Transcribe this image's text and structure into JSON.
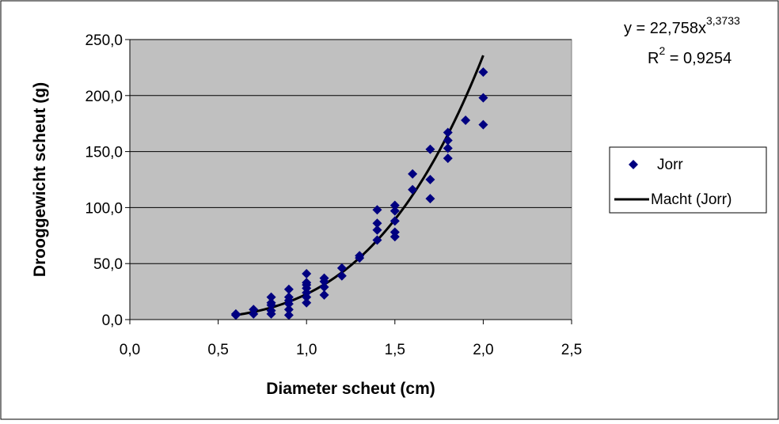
{
  "chart_data": {
    "type": "scatter",
    "xlabel": "Diameter scheut (cm)",
    "ylabel": "Drooggewicht scheut (g)",
    "xlim": [
      0.0,
      2.5
    ],
    "ylim": [
      0.0,
      250.0
    ],
    "x_ticks": [
      "0,0",
      "0,5",
      "1,0",
      "1,5",
      "2,0",
      "2,5"
    ],
    "y_ticks": [
      "0,0",
      "50,0",
      "100,0",
      "150,0",
      "200,0",
      "250,0"
    ],
    "grid": "horizontal",
    "plot_background": "#c0c0c0",
    "legend_position": "right",
    "series": [
      {
        "name": "Jorr",
        "marker": "diamond",
        "color": "#000080",
        "points": [
          [
            0.6,
            4
          ],
          [
            0.6,
            5
          ],
          [
            0.7,
            5
          ],
          [
            0.7,
            9
          ],
          [
            0.8,
            5
          ],
          [
            0.8,
            8
          ],
          [
            0.8,
            13
          ],
          [
            0.8,
            15
          ],
          [
            0.8,
            20
          ],
          [
            0.9,
            4
          ],
          [
            0.9,
            9
          ],
          [
            0.9,
            14
          ],
          [
            0.9,
            17
          ],
          [
            0.9,
            20
          ],
          [
            0.9,
            27
          ],
          [
            1.0,
            15
          ],
          [
            1.0,
            20
          ],
          [
            1.0,
            24
          ],
          [
            1.0,
            28
          ],
          [
            1.0,
            31
          ],
          [
            1.0,
            33
          ],
          [
            1.0,
            41
          ],
          [
            1.1,
            22
          ],
          [
            1.1,
            29
          ],
          [
            1.1,
            34
          ],
          [
            1.1,
            37
          ],
          [
            1.2,
            39
          ],
          [
            1.2,
            46
          ],
          [
            1.3,
            55
          ],
          [
            1.3,
            57
          ],
          [
            1.4,
            71
          ],
          [
            1.4,
            80
          ],
          [
            1.4,
            86
          ],
          [
            1.4,
            98
          ],
          [
            1.5,
            74
          ],
          [
            1.5,
            78
          ],
          [
            1.5,
            88
          ],
          [
            1.5,
            97
          ],
          [
            1.5,
            102
          ],
          [
            1.6,
            116
          ],
          [
            1.6,
            130
          ],
          [
            1.7,
            108
          ],
          [
            1.7,
            125
          ],
          [
            1.7,
            152
          ],
          [
            1.8,
            144
          ],
          [
            1.8,
            153
          ],
          [
            1.8,
            160
          ],
          [
            1.8,
            167
          ],
          [
            1.9,
            178
          ],
          [
            2.0,
            174
          ],
          [
            2.0,
            198
          ],
          [
            2.0,
            221
          ]
        ]
      },
      {
        "name": "Macht (Jorr)",
        "type": "trendline",
        "model": "power",
        "coefficient": 22.758,
        "exponent": 3.3733,
        "x_range": [
          0.6,
          2.0
        ],
        "color": "#000000"
      }
    ],
    "annotations": {
      "equation_prefix": "y = 22,758x",
      "equation_exponent": "3,3733",
      "r2_prefix": "R",
      "r2_exponent": "2",
      "r2_value": " = 0,9254"
    }
  }
}
